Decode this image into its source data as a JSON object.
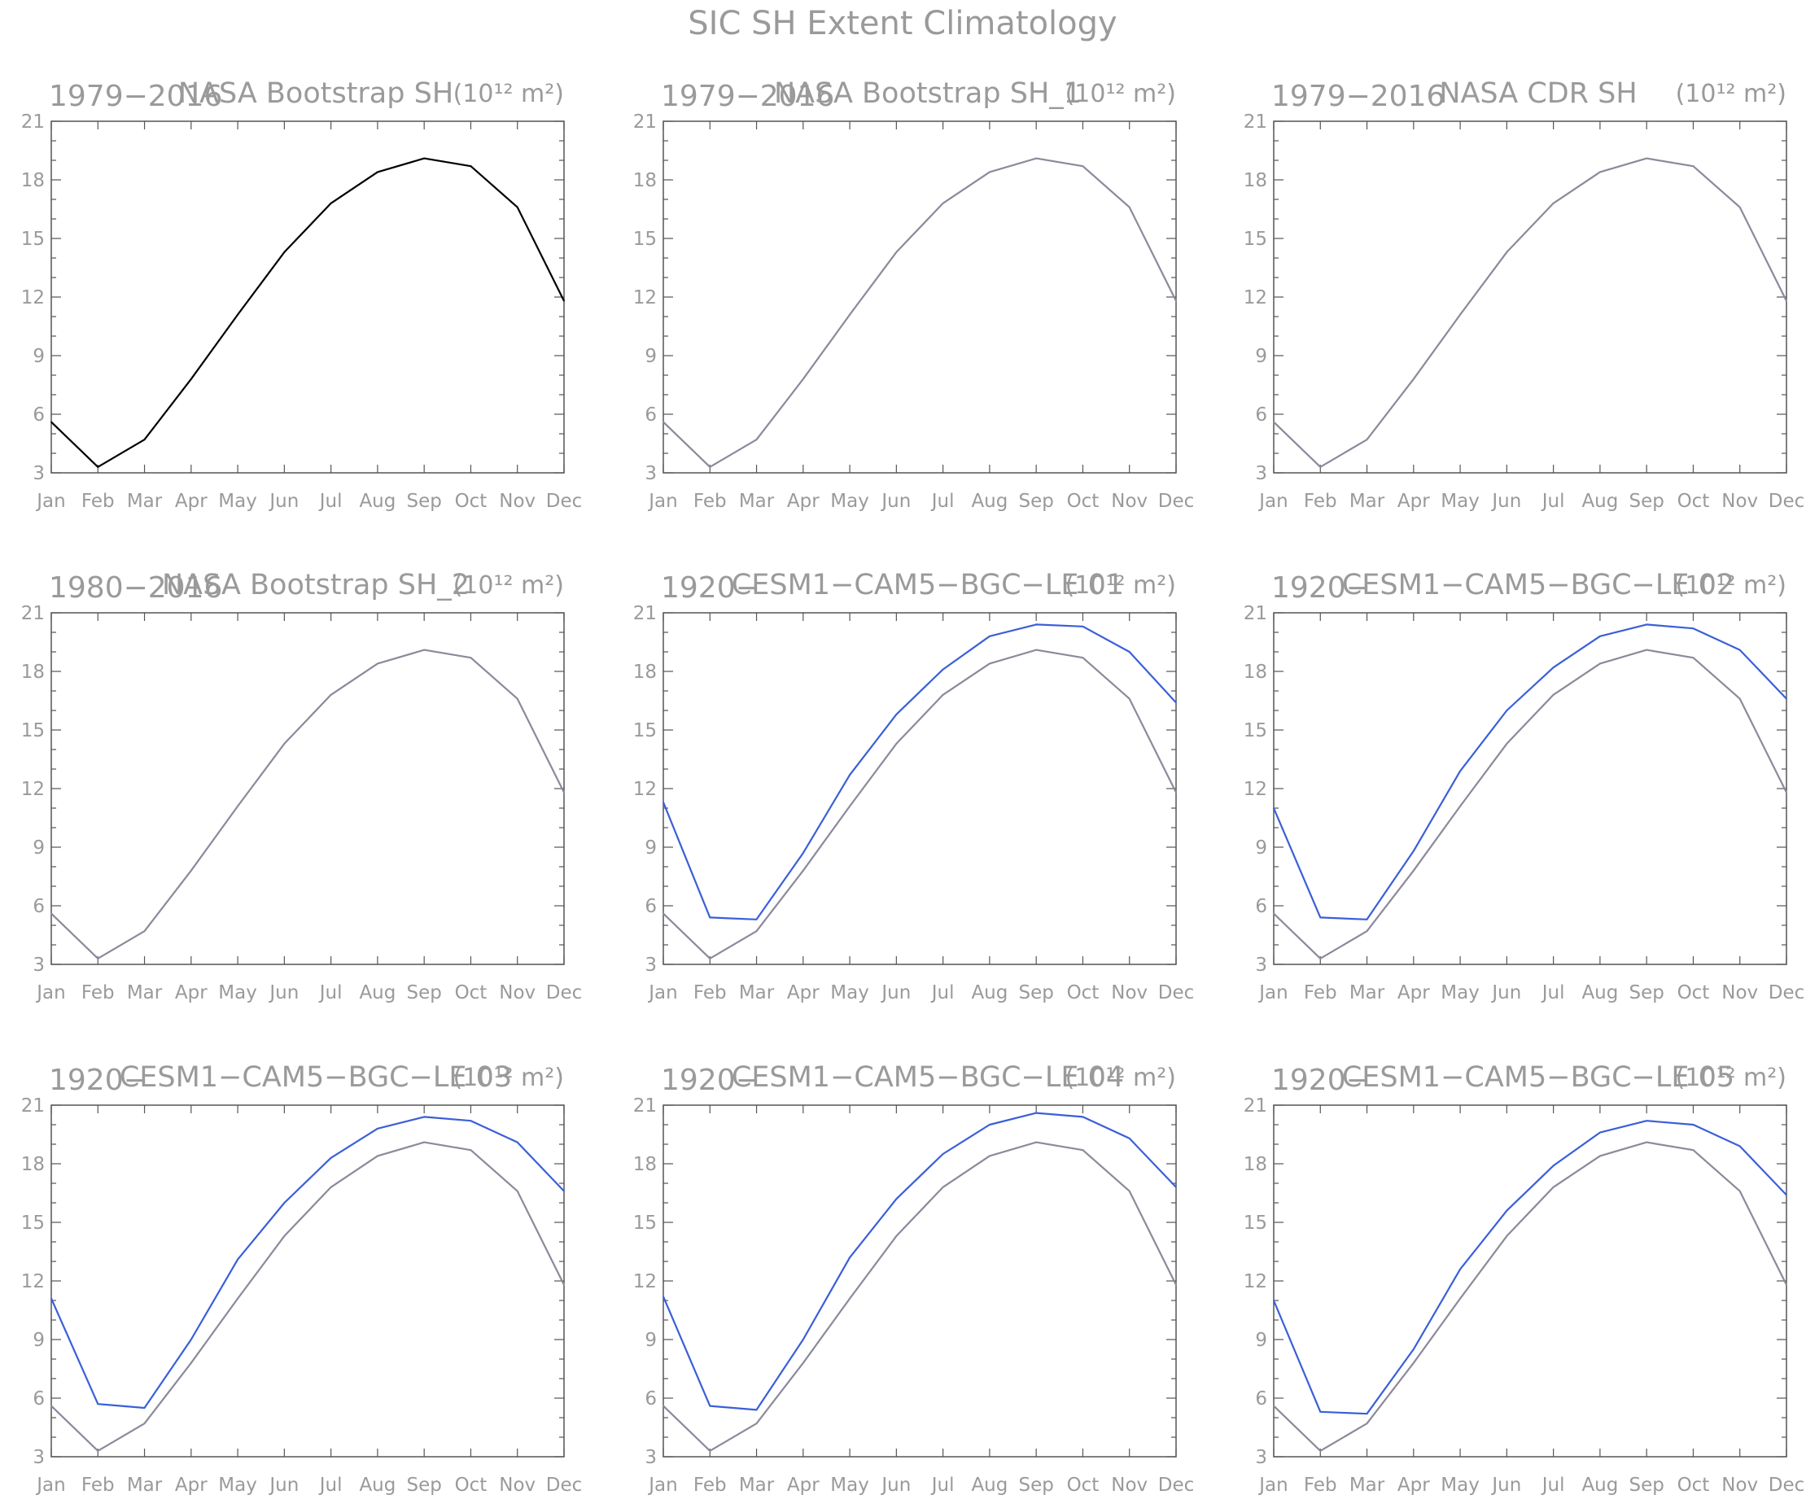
{
  "figure_title": "SIC SH Extent Climatology",
  "chart_data": [
    {
      "type": "line",
      "period_label": "1979−2016",
      "title": "NASA Bootstrap SH",
      "units": "(10¹² m²)",
      "categories": [
        "Jan",
        "Feb",
        "Mar",
        "Apr",
        "May",
        "Jun",
        "Jul",
        "Aug",
        "Sep",
        "Oct",
        "Nov",
        "Dec"
      ],
      "ylim": [
        3,
        21
      ],
      "yticks": [
        "3",
        "6",
        "9",
        "12",
        "15",
        "18",
        "21"
      ],
      "series": [
        {
          "color": "#000000",
          "values": [
            5.6,
            3.3,
            4.7,
            7.8,
            11.1,
            14.3,
            16.8,
            18.4,
            19.1,
            18.7,
            16.6,
            11.8
          ]
        }
      ]
    },
    {
      "type": "line",
      "period_label": "1979−2016",
      "title": "NASA Bootstrap SH_1",
      "units": "(10¹² m²)",
      "categories": [
        "Jan",
        "Feb",
        "Mar",
        "Apr",
        "May",
        "Jun",
        "Jul",
        "Aug",
        "Sep",
        "Oct",
        "Nov",
        "Dec"
      ],
      "ylim": [
        3,
        21
      ],
      "yticks": [
        "3",
        "6",
        "9",
        "12",
        "15",
        "18",
        "21"
      ],
      "series": [
        {
          "color": "#8a8a9a",
          "values": [
            5.6,
            3.3,
            4.7,
            7.8,
            11.1,
            14.3,
            16.8,
            18.4,
            19.1,
            18.7,
            16.6,
            11.8
          ]
        }
      ]
    },
    {
      "type": "line",
      "period_label": "1979−2016",
      "title": "NASA CDR SH",
      "units": "(10¹² m²)",
      "categories": [
        "Jan",
        "Feb",
        "Mar",
        "Apr",
        "May",
        "Jun",
        "Jul",
        "Aug",
        "Sep",
        "Oct",
        "Nov",
        "Dec"
      ],
      "ylim": [
        3,
        21
      ],
      "yticks": [
        "3",
        "6",
        "9",
        "12",
        "15",
        "18",
        "21"
      ],
      "series": [
        {
          "color": "#8a8a9a",
          "values": [
            5.6,
            3.3,
            4.7,
            7.8,
            11.1,
            14.3,
            16.8,
            18.4,
            19.1,
            18.7,
            16.6,
            11.8
          ]
        }
      ]
    },
    {
      "type": "line",
      "period_label": "1980−2016",
      "title": "NASA Bootstrap SH_2",
      "units": "(10¹² m²)",
      "categories": [
        "Jan",
        "Feb",
        "Mar",
        "Apr",
        "May",
        "Jun",
        "Jul",
        "Aug",
        "Sep",
        "Oct",
        "Nov",
        "Dec"
      ],
      "ylim": [
        3,
        21
      ],
      "yticks": [
        "3",
        "6",
        "9",
        "12",
        "15",
        "18",
        "21"
      ],
      "series": [
        {
          "color": "#8a8a9a",
          "values": [
            5.6,
            3.3,
            4.7,
            7.8,
            11.1,
            14.3,
            16.8,
            18.4,
            19.1,
            18.7,
            16.6,
            11.8
          ]
        }
      ]
    },
    {
      "type": "line",
      "period_label": "1920−",
      "title": "CESM1−CAM5−BGC−LE 01",
      "units": "(10¹² m²)",
      "categories": [
        "Jan",
        "Feb",
        "Mar",
        "Apr",
        "May",
        "Jun",
        "Jul",
        "Aug",
        "Sep",
        "Oct",
        "Nov",
        "Dec"
      ],
      "ylim": [
        3,
        21
      ],
      "yticks": [
        "3",
        "6",
        "9",
        "12",
        "15",
        "18",
        "21"
      ],
      "series": [
        {
          "color": "#8a8a9a",
          "values": [
            5.6,
            3.3,
            4.7,
            7.8,
            11.1,
            14.3,
            16.8,
            18.4,
            19.1,
            18.7,
            16.6,
            11.8
          ]
        },
        {
          "color": "#3a5fd8",
          "values": [
            11.3,
            5.4,
            5.3,
            8.7,
            12.7,
            15.8,
            18.1,
            19.8,
            20.4,
            20.3,
            19.0,
            16.4
          ]
        }
      ]
    },
    {
      "type": "line",
      "period_label": "1920−",
      "title": "CESM1−CAM5−BGC−LE 02",
      "units": "(10¹² m²)",
      "categories": [
        "Jan",
        "Feb",
        "Mar",
        "Apr",
        "May",
        "Jun",
        "Jul",
        "Aug",
        "Sep",
        "Oct",
        "Nov",
        "Dec"
      ],
      "ylim": [
        3,
        21
      ],
      "yticks": [
        "3",
        "6",
        "9",
        "12",
        "15",
        "18",
        "21"
      ],
      "series": [
        {
          "color": "#8a8a9a",
          "values": [
            5.6,
            3.3,
            4.7,
            7.8,
            11.1,
            14.3,
            16.8,
            18.4,
            19.1,
            18.7,
            16.6,
            11.8
          ]
        },
        {
          "color": "#3a5fd8",
          "values": [
            11.0,
            5.4,
            5.3,
            8.8,
            12.9,
            16.0,
            18.2,
            19.8,
            20.4,
            20.2,
            19.1,
            16.6
          ]
        }
      ]
    },
    {
      "type": "line",
      "period_label": "1920−",
      "title": "CESM1−CAM5−BGC−LE 03",
      "units": "(10¹² m²)",
      "categories": [
        "Jan",
        "Feb",
        "Mar",
        "Apr",
        "May",
        "Jun",
        "Jul",
        "Aug",
        "Sep",
        "Oct",
        "Nov",
        "Dec"
      ],
      "ylim": [
        3,
        21
      ],
      "yticks": [
        "3",
        "6",
        "9",
        "12",
        "15",
        "18",
        "21"
      ],
      "series": [
        {
          "color": "#8a8a9a",
          "values": [
            5.6,
            3.3,
            4.7,
            7.8,
            11.1,
            14.3,
            16.8,
            18.4,
            19.1,
            18.7,
            16.6,
            11.8
          ]
        },
        {
          "color": "#3a5fd8",
          "values": [
            11.1,
            5.7,
            5.5,
            9.0,
            13.1,
            16.0,
            18.3,
            19.8,
            20.4,
            20.2,
            19.1,
            16.6
          ]
        }
      ]
    },
    {
      "type": "line",
      "period_label": "1920−",
      "title": "CESM1−CAM5−BGC−LE 04",
      "units": "(10¹² m²)",
      "categories": [
        "Jan",
        "Feb",
        "Mar",
        "Apr",
        "May",
        "Jun",
        "Jul",
        "Aug",
        "Sep",
        "Oct",
        "Nov",
        "Dec"
      ],
      "ylim": [
        3,
        21
      ],
      "yticks": [
        "3",
        "6",
        "9",
        "12",
        "15",
        "18",
        "21"
      ],
      "series": [
        {
          "color": "#8a8a9a",
          "values": [
            5.6,
            3.3,
            4.7,
            7.8,
            11.1,
            14.3,
            16.8,
            18.4,
            19.1,
            18.7,
            16.6,
            11.8
          ]
        },
        {
          "color": "#3a5fd8",
          "values": [
            11.2,
            5.6,
            5.4,
            9.0,
            13.2,
            16.2,
            18.5,
            20.0,
            20.6,
            20.4,
            19.3,
            16.8
          ]
        }
      ]
    },
    {
      "type": "line",
      "period_label": "1920−",
      "title": "CESM1−CAM5−BGC−LE 05",
      "units": "(10¹² m²)",
      "categories": [
        "Jan",
        "Feb",
        "Mar",
        "Apr",
        "May",
        "Jun",
        "Jul",
        "Aug",
        "Sep",
        "Oct",
        "Nov",
        "Dec"
      ],
      "ylim": [
        3,
        21
      ],
      "yticks": [
        "3",
        "6",
        "9",
        "12",
        "15",
        "18",
        "21"
      ],
      "series": [
        {
          "color": "#8a8a9a",
          "values": [
            5.6,
            3.3,
            4.7,
            7.8,
            11.1,
            14.3,
            16.8,
            18.4,
            19.1,
            18.7,
            16.6,
            11.8
          ]
        },
        {
          "color": "#3a5fd8",
          "values": [
            11.0,
            5.3,
            5.2,
            8.5,
            12.6,
            15.6,
            17.9,
            19.6,
            20.2,
            20.0,
            18.9,
            16.4
          ]
        }
      ]
    }
  ]
}
